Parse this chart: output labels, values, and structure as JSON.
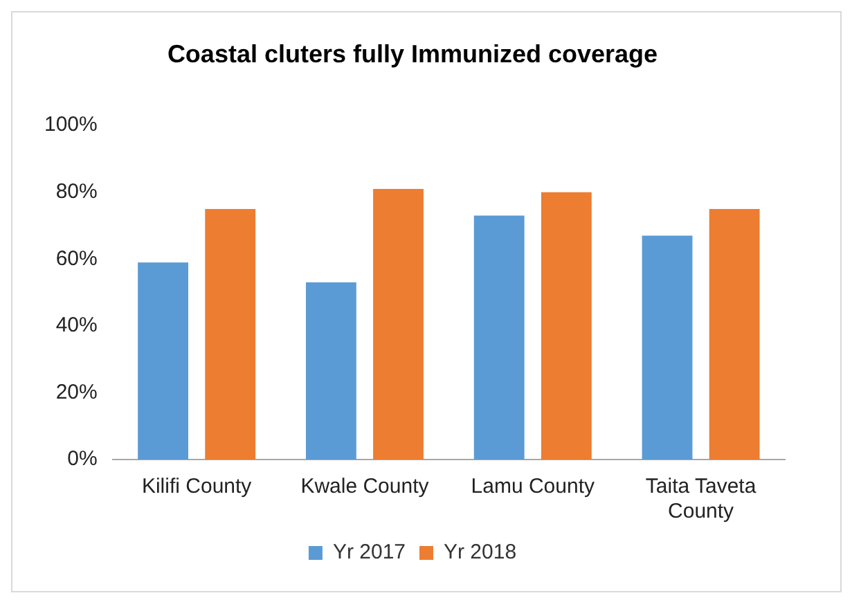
{
  "chart_data": {
    "type": "bar",
    "title": "Coastal cluters fully Immunized coverage",
    "categories": [
      "Kilifi County",
      "Kwale County",
      "Lamu County",
      "Taita Taveta County"
    ],
    "series": [
      {
        "name": "Yr 2017",
        "color": "#5b9bd5",
        "values": [
          59,
          53,
          73,
          67
        ]
      },
      {
        "name": "Yr 2018",
        "color": "#ed7d31",
        "values": [
          75,
          81,
          80,
          75
        ]
      }
    ],
    "ylim": [
      0,
      100
    ],
    "yticks": [
      {
        "value": 0,
        "label": "0%"
      },
      {
        "value": 20,
        "label": "20%"
      },
      {
        "value": 40,
        "label": "40%"
      },
      {
        "value": 60,
        "label": "60%"
      },
      {
        "value": 80,
        "label": "80%"
      },
      {
        "value": 100,
        "label": "100%"
      }
    ],
    "grid": false,
    "legend": "bottom"
  }
}
